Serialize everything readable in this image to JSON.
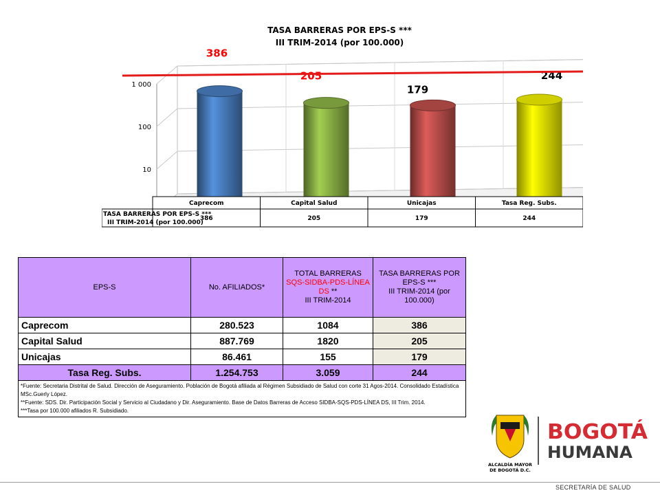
{
  "chart_data": {
    "type": "bar",
    "title": "TASA BARRERAS POR EPS-S ***",
    "subtitle": "III TRIM-2014 (por 100.000)",
    "categories": [
      "Caprecom",
      "Capital Salud",
      "Unicajas",
      "Tasa Reg. Subs."
    ],
    "series": [
      {
        "name": "TASA BARRERAS POR EPS-S *** III TRIM-2014 (por 100.000)",
        "values": [
          386,
          205,
          179,
          244
        ]
      }
    ],
    "y_scale": "log",
    "ylim": [
      1,
      1000
    ],
    "y_ticks": [
      "1",
      "10",
      "100",
      "1 000"
    ],
    "data_labels": [
      "386",
      "205",
      "179",
      "244"
    ],
    "data_table_header": [
      "TASA BARRERAS POR EPS-S ***",
      "III TRIM-2014 (por 100.000)"
    ],
    "reference_line": "red",
    "colors": [
      "#4a7fc1",
      "#8db446",
      "#c0504d",
      "#f2f200"
    ],
    "label_colors": [
      "#ff0000",
      "#ff0000",
      "#000000",
      "#000000"
    ],
    "grid": true
  },
  "table": {
    "headers": {
      "eps": "EPS-S",
      "afiliados": "No. AFILIADOS*",
      "barreras_1": "TOTAL BARRERAS",
      "barreras_2": "SQS-SIDBA-PDS-LÍNEA DS",
      "barreras_3": "**",
      "barreras_4": "III TRIM-2014",
      "tasa_1": "TASA BARRERAS POR EPS-S ***",
      "tasa_2": "III TRIM-2014 (por 100.000)"
    },
    "rows": [
      {
        "eps": "Caprecom",
        "afiliados": "280.523",
        "barreras": "1084",
        "tasa": "386"
      },
      {
        "eps": "Capital Salud",
        "afiliados": "887.769",
        "barreras": "1820",
        "tasa": "205"
      },
      {
        "eps": "Unicajas",
        "afiliados": "86.461",
        "barreras": "155",
        "tasa": "179"
      }
    ],
    "total": {
      "eps": "Tasa Reg. Subs.",
      "afiliados": "1.254.753",
      "barreras": "3.059",
      "tasa": "244"
    },
    "footnotes": [
      "*Fuente: Secretaria Distrital de Salud. Dirección de Aseguramiento. Población de Bogotá afiliada al Régimen Subsidiado de Salud con corte 31 Agos-2014. Consolidado Estadística MSc.Guerly López.",
      "**Fuente: SDS. Dir. Participación Social y Servicio al Ciudadano y Dir. Aseguramiento. Base de Datos Barreras de Acceso SIDBA-SQS-PDS-LÍNEA DS, III Trim. 2014.",
      "***Tasa por 100.000 afiliados R. Subsidiado."
    ]
  },
  "logos": {
    "alcaldia_line1": "ALCALDÍA MAYOR",
    "alcaldia_line2": "DE BOGOTÁ D.C.",
    "bogota_word": "BOGOTÁ",
    "humana_word": "HUMANA",
    "secretaria": "SECRETARÍA DE SALUD"
  },
  "colors": {
    "header_purple": "#cc99ff",
    "rate_cell": "#eeece1",
    "red_line": "#e31b1b",
    "logo_red": "#d52b33"
  }
}
